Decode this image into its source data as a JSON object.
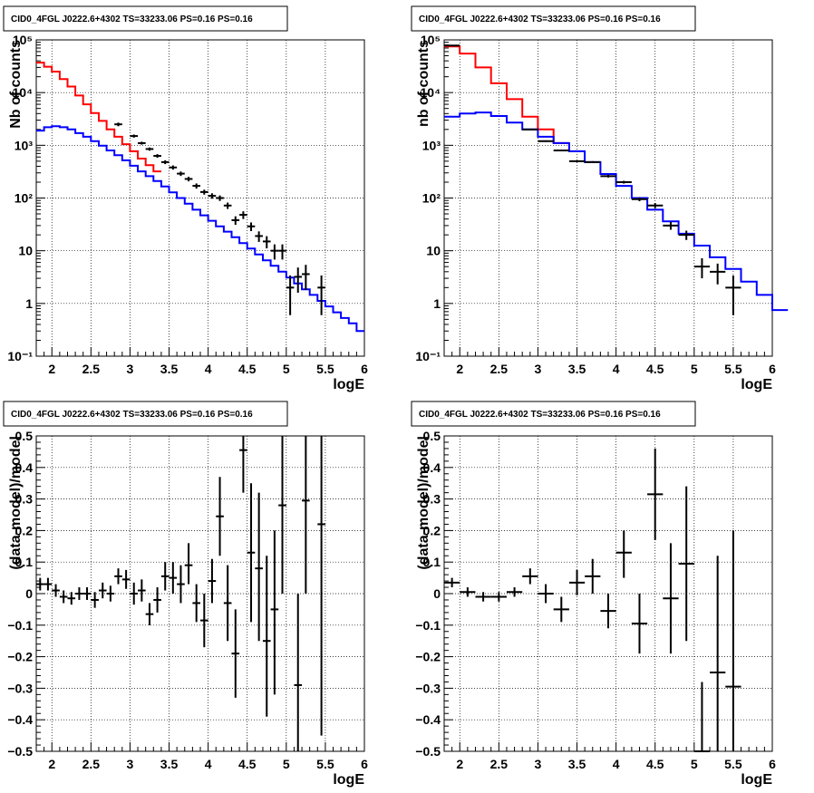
{
  "chart_data": [
    {
      "type": "histogram",
      "title": "CID0_4FGL J0222.6+4302 TS=33233.06 PS=0.16 PS=0.16",
      "xlabel": "logE",
      "ylabel": "Nb of counts",
      "xlim": [
        1.8,
        6.0
      ],
      "ylim": [
        0.1,
        100000
      ],
      "yscale": "log",
      "grid": true,
      "xticks": [
        "2",
        "2.5",
        "3",
        "3.5",
        "4",
        "4.5",
        "5",
        "5.5",
        "6"
      ],
      "yticks": [
        "10⁻¹",
        "1",
        "10",
        "10²",
        "10³",
        "10⁴",
        "10⁵"
      ],
      "colors": {
        "total": "#ff0000",
        "source": "#0000ff",
        "data": "#000000"
      },
      "series": [
        {
          "kind": "step",
          "color": "#ff0000",
          "bin_edges_from": 1.8,
          "bin_width": 0.1,
          "values": [
            37000,
            31000,
            25000,
            18000,
            13000,
            8800,
            6000,
            4100,
            2900,
            2000,
            1450,
            1050,
            770,
            560,
            420,
            320
          ]
        },
        {
          "kind": "step",
          "color": "#0000ff",
          "bin_edges_from": 1.8,
          "bin_width": 0.1,
          "values": [
            1900,
            2200,
            2300,
            2200,
            2000,
            1700,
            1450,
            1200,
            980,
            800,
            650,
            520,
            410,
            320,
            260,
            210,
            165,
            128,
            100,
            78,
            60,
            47,
            37,
            29,
            23,
            18,
            14,
            11,
            8.5,
            6.6,
            5.2,
            4.0,
            3.1,
            2.4,
            1.85,
            1.45,
            1.12,
            0.88,
            0.68,
            0.53,
            0.42,
            0.3
          ]
        },
        {
          "kind": "points",
          "color": "#000000",
          "xerr": 0.05,
          "x": [
            2.85,
            3.05,
            3.15,
            3.25,
            3.35,
            3.45,
            3.55,
            3.65,
            3.75,
            3.85,
            3.95,
            4.05,
            4.15,
            4.25,
            4.35,
            4.45,
            4.55,
            4.65,
            4.75,
            4.85,
            4.95,
            5.05,
            5.15,
            5.25,
            5.45
          ],
          "y": [
            2500,
            1500,
            1100,
            850,
            630,
            480,
            380,
            290,
            230,
            170,
            130,
            110,
            100,
            72,
            38,
            48,
            29,
            19,
            15,
            10,
            10,
            2,
            3.2,
            3.6,
            2
          ],
          "ylo": [
            2300,
            1400,
            1030,
            790,
            580,
            440,
            345,
            262,
            207,
            151,
            116,
            97,
            88,
            62,
            31,
            40,
            23.6,
            14.7,
            11.1,
            6.8,
            6.8,
            0.6,
            1.6,
            1.8,
            0.6
          ],
          "yhi": [
            2700,
            1600,
            1170,
            910,
            680,
            520,
            415,
            318,
            253,
            189,
            144,
            123,
            112,
            82,
            45,
            56,
            34.4,
            23.3,
            18.9,
            13.2,
            13.2,
            3.4,
            4.8,
            5.4,
            3.4
          ]
        }
      ]
    },
    {
      "type": "histogram",
      "title": "CID0_4FGL J0222.6+4302 TS=33233.06 PS=0.16 PS=0.16",
      "xlabel": "logE",
      "ylabel": "nb of counts",
      "xlim": [
        1.8,
        6.0
      ],
      "ylim": [
        0.1,
        100000
      ],
      "yscale": "log",
      "grid": true,
      "xticks": [
        "2",
        "2.5",
        "3",
        "3.5",
        "4",
        "4.5",
        "5",
        "5.5",
        "6"
      ],
      "yticks": [
        "10⁻¹",
        "1",
        "10",
        "10²",
        "10³",
        "10⁴",
        "10⁵"
      ],
      "colors": {
        "total": "#ff0000",
        "source": "#0000ff",
        "data": "#000000"
      },
      "series": [
        {
          "kind": "step",
          "color": "#ff0000",
          "bin_edges_from": 1.8,
          "bin_width": 0.2,
          "values": [
            75000,
            55000,
            30000,
            15000,
            7500,
            3500,
            2000,
            1100
          ]
        },
        {
          "kind": "step",
          "color": "#0000ff",
          "bin_edges_from": 1.8,
          "bin_width": 0.2,
          "values": [
            3500,
            4000,
            4200,
            3600,
            2700,
            2000,
            1450,
            1100,
            770,
            480,
            285,
            170,
            100,
            60,
            36,
            21,
            12.5,
            7.5,
            4.5,
            2.6,
            1.45,
            0.75
          ]
        },
        {
          "kind": "points",
          "color": "#000000",
          "xerr": 0.1,
          "x": [
            1.9,
            2.9,
            3.1,
            3.3,
            3.5,
            3.7,
            3.9,
            4.1,
            4.3,
            4.5,
            4.7,
            4.9,
            5.1,
            5.3,
            5.5
          ],
          "y": [
            78000,
            2000,
            1200,
            800,
            500,
            480,
            260,
            200,
            95,
            72,
            30,
            20,
            5,
            4,
            2
          ],
          "ylo": [
            77500,
            1950,
            1160,
            770,
            480,
            460,
            245,
            188,
            87,
            64,
            25,
            16,
            3,
            2.3,
            0.6
          ],
          "yhi": [
            78500,
            2050,
            1240,
            830,
            520,
            500,
            275,
            212,
            103,
            80,
            35,
            24,
            7.2,
            5.7,
            3.4
          ]
        }
      ]
    },
    {
      "type": "scatter",
      "title": "CID0_4FGL J0222.6+4302 TS=33233.06 PS=0.16 PS=0.16",
      "xlabel": "logE",
      "ylabel": "(data-model)/model",
      "xlim": [
        1.8,
        6.0
      ],
      "ylim": [
        -0.5,
        0.5
      ],
      "grid": true,
      "xticks": [
        "2",
        "2.5",
        "3",
        "3.5",
        "4",
        "4.5",
        "5",
        "5.5",
        "6"
      ],
      "yticks": [
        "−0.5",
        "−0.4",
        "−0.3",
        "−0.2",
        "−0.1",
        "0",
        "0.1",
        "0.2",
        "0.3",
        "0.4",
        "0.5"
      ],
      "xerr": 0.05,
      "x": [
        1.85,
        1.95,
        2.05,
        2.15,
        2.25,
        2.35,
        2.45,
        2.55,
        2.65,
        2.75,
        2.85,
        2.95,
        3.05,
        3.15,
        3.25,
        3.35,
        3.45,
        3.55,
        3.65,
        3.75,
        3.85,
        3.95,
        4.05,
        4.15,
        4.25,
        4.35,
        4.45,
        4.55,
        4.65,
        4.75,
        4.85,
        4.95,
        5.15,
        5.25,
        5.45
      ],
      "y": [
        0.03,
        0.03,
        0.01,
        -0.01,
        -0.015,
        0.0,
        0.0,
        -0.02,
        0.01,
        0.0,
        0.055,
        0.045,
        0.0,
        0.01,
        -0.065,
        -0.02,
        0.055,
        0.05,
        0.03,
        0.09,
        -0.03,
        -0.085,
        0.04,
        0.245,
        -0.03,
        -0.19,
        0.455,
        0.13,
        0.08,
        -0.15,
        -0.05,
        0.28,
        -0.29,
        0.295,
        0.22
      ],
      "ylo": [
        0.01,
        0.01,
        -0.01,
        -0.03,
        -0.035,
        -0.02,
        -0.02,
        -0.045,
        -0.015,
        -0.025,
        0.03,
        0.015,
        -0.035,
        -0.025,
        -0.1,
        -0.06,
        0.01,
        0.0,
        -0.03,
        0.03,
        -0.09,
        -0.17,
        -0.03,
        0.12,
        -0.15,
        -0.33,
        0.32,
        -0.09,
        -0.15,
        -0.39,
        -0.32,
        0.0,
        -0.58,
        0.0,
        -0.45
      ],
      "yhi": [
        0.05,
        0.05,
        0.03,
        0.01,
        0.005,
        0.02,
        0.02,
        0.005,
        0.035,
        0.025,
        0.08,
        0.075,
        0.035,
        0.045,
        -0.03,
        0.02,
        0.1,
        0.1,
        0.09,
        0.16,
        0.03,
        0.0,
        0.11,
        0.37,
        0.09,
        -0.05,
        0.59,
        0.35,
        0.32,
        0.12,
        0.2,
        0.56,
        0.0,
        0.59,
        0.89
      ]
    },
    {
      "type": "scatter",
      "title": "CID0_4FGL J0222.6+4302 TS=33233.06 PS=0.16 PS=0.16",
      "xlabel": "logE",
      "ylabel": "(data-model)/model",
      "xlim": [
        1.8,
        6.0
      ],
      "ylim": [
        -0.5,
        0.5
      ],
      "grid": true,
      "xticks": [
        "2",
        "2.5",
        "3",
        "3.5",
        "4",
        "4.5",
        "5",
        "5.5",
        "6"
      ],
      "yticks": [
        "−0.5",
        "−0.4",
        "−0.3",
        "−0.2",
        "−0.1",
        "0",
        "0.1",
        "0.2",
        "0.3",
        "0.4",
        "0.5"
      ],
      "xerr": 0.1,
      "x": [
        1.9,
        2.1,
        2.3,
        2.5,
        2.7,
        2.9,
        3.1,
        3.3,
        3.5,
        3.7,
        3.9,
        4.1,
        4.3,
        4.5,
        4.7,
        4.9,
        5.1,
        5.3,
        5.5
      ],
      "y": [
        0.035,
        0.005,
        -0.01,
        -0.01,
        0.005,
        0.055,
        0.0,
        -0.05,
        0.035,
        0.055,
        -0.055,
        0.13,
        -0.095,
        0.315,
        -0.015,
        0.095,
        -0.5,
        -0.25,
        -0.295
      ],
      "ylo": [
        0.02,
        -0.01,
        -0.025,
        -0.025,
        -0.01,
        0.03,
        -0.03,
        -0.09,
        -0.005,
        0.0,
        -0.11,
        0.05,
        -0.19,
        0.17,
        -0.19,
        -0.15,
        -0.5,
        -0.5,
        -0.5
      ],
      "yhi": [
        0.05,
        0.02,
        0.005,
        0.005,
        0.02,
        0.08,
        0.03,
        -0.01,
        0.075,
        0.11,
        0.0,
        0.2,
        0.0,
        0.46,
        0.16,
        0.34,
        -0.28,
        0.12,
        0.2
      ]
    }
  ]
}
